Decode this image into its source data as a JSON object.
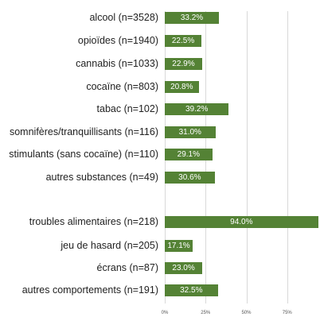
{
  "chart_data": {
    "type": "bar",
    "orientation": "horizontal",
    "categories": [
      "alcool (n=3528)",
      "opioïdes (n=1940)",
      "cannabis (n=1033)",
      "cocaïne (n=803)",
      "tabac (n=102)",
      "somnifères/tranquillisants (n=116)",
      "stimulants (sans cocaïne) (n=110)",
      "autres substances (n=49)",
      "troubles alimentaires (n=218)",
      "jeu de hasard (n=205)",
      "écrans (n=87)",
      "autres comportements (n=191)"
    ],
    "values": [
      33.2,
      22.5,
      22.9,
      20.8,
      39.2,
      31.0,
      29.1,
      30.6,
      94.0,
      17.1,
      23.0,
      32.5
    ],
    "value_labels": [
      "33.2%",
      "22.5%",
      "22.9%",
      "20.8%",
      "39.2%",
      "31.0%",
      "29.1%",
      "30.6%",
      "94.0%",
      "17.1%",
      "23.0%",
      "32.5%"
    ],
    "xlim": [
      0,
      100
    ],
    "xticks": [
      0,
      25,
      50,
      75
    ],
    "xtick_labels": [
      "0%",
      "25%",
      "50%",
      "75%"
    ],
    "grid": true,
    "bar_color": "#548235",
    "title": "",
    "xlabel": "",
    "ylabel": ""
  }
}
